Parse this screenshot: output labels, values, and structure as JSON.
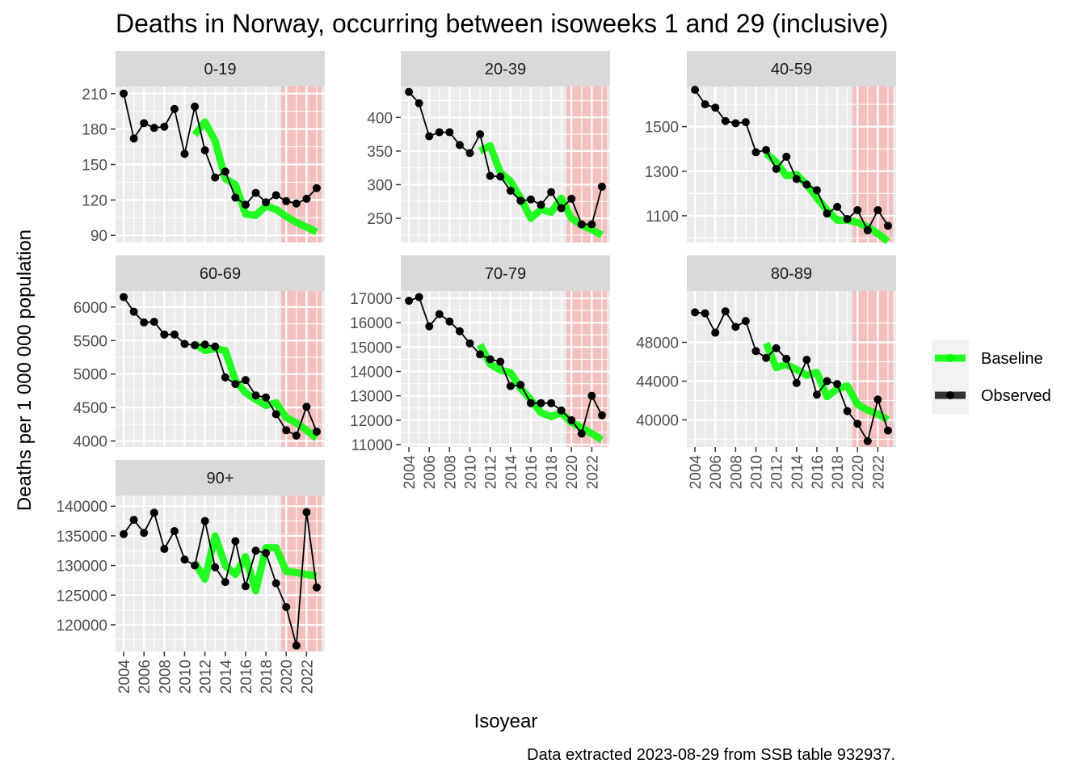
{
  "chart_data": {
    "type": "line",
    "title": "Deaths in Norway, occurring between isoweeks 1 and 29 (inclusive)",
    "xlabel": "Isoyear",
    "ylabel": "Deaths per 1 000 000 population",
    "caption": "Data extracted 2023-08-29 from SSB table 932937.",
    "legend": {
      "position": "right",
      "items": [
        {
          "label": "Baseline",
          "color": "#00ff00"
        },
        {
          "label": "Observed",
          "color": "#000000"
        }
      ]
    },
    "colors": {
      "observed": "#000000",
      "baseline": "#00ff00",
      "shade": "#f4b8b8",
      "panel_bg": "#ebebeb",
      "strip_bg": "#d9d9d9"
    },
    "shaded_range": [
      2019.5,
      2023.5
    ],
    "xlim": [
      2003.2,
      2023.8
    ],
    "x_ticks": [
      2004,
      2006,
      2008,
      2010,
      2012,
      2014,
      2016,
      2018,
      2020,
      2022
    ],
    "x_tick_labels": [
      "2004",
      "2006",
      "2008",
      "2010",
      "2012",
      "2014",
      "2016",
      "2018",
      "2020",
      "2022"
    ],
    "years": [
      2004,
      2005,
      2006,
      2007,
      2008,
      2009,
      2010,
      2011,
      2012,
      2013,
      2014,
      2015,
      2016,
      2017,
      2018,
      2019,
      2020,
      2021,
      2022,
      2023
    ],
    "baseline_years": [
      2011,
      2012,
      2013,
      2014,
      2015,
      2016,
      2017,
      2018,
      2019,
      2020,
      2021,
      2022,
      2023
    ],
    "panels": [
      {
        "name": "0-19",
        "ylim": [
          84,
          216
        ],
        "y_ticks": [
          90,
          120,
          150,
          180,
          210
        ],
        "y_tick_labels": [
          "90",
          "120",
          "150",
          "180",
          "210"
        ],
        "observed": [
          210,
          172,
          185,
          181,
          182,
          197,
          159,
          199,
          162,
          139,
          144,
          122,
          116,
          126,
          118,
          124,
          119,
          117,
          121,
          130
        ],
        "baseline": [
          175,
          186,
          170,
          138,
          133,
          108,
          107,
          115,
          112,
          106,
          101,
          97,
          93
        ]
      },
      {
        "name": "20-39",
        "ylim": [
          214,
          446
        ],
        "y_ticks": [
          250,
          300,
          350,
          400
        ],
        "y_tick_labels": [
          "250",
          "300",
          "350",
          "400"
        ],
        "observed": [
          438,
          421,
          372,
          378,
          378,
          359,
          347,
          375,
          313,
          312,
          291,
          276,
          278,
          270,
          289,
          265,
          279,
          241,
          241,
          297
        ],
        "baseline": [
          350,
          358,
          318,
          305,
          280,
          250,
          263,
          259,
          280,
          250,
          240,
          233,
          225
        ]
      },
      {
        "name": "40-59",
        "ylim": [
          980,
          1680
        ],
        "y_ticks": [
          1100,
          1300,
          1500
        ],
        "y_tick_labels": [
          "1100",
          "1300",
          "1500"
        ],
        "observed": [
          1665,
          1600,
          1585,
          1525,
          1515,
          1520,
          1385,
          1395,
          1310,
          1365,
          1265,
          1240,
          1215,
          1110,
          1140,
          1085,
          1125,
          1035,
          1125,
          1055
        ],
        "baseline": [
          1380,
          1340,
          1280,
          1285,
          1240,
          1180,
          1125,
          1080,
          1080,
          1070,
          1050,
          1020,
          985
        ]
      },
      {
        "name": "60-69",
        "ylim": [
          3910,
          6240
        ],
        "y_ticks": [
          4000,
          4500,
          5000,
          5500,
          6000
        ],
        "y_tick_labels": [
          "4000",
          "4500",
          "5000",
          "5500",
          "6000"
        ],
        "observed": [
          6150,
          5930,
          5770,
          5780,
          5590,
          5590,
          5450,
          5430,
          5440,
          5410,
          4950,
          4850,
          4910,
          4680,
          4650,
          4400,
          4160,
          4080,
          4510,
          4140
        ],
        "baseline": [
          5450,
          5350,
          5380,
          5350,
          4900,
          4720,
          4620,
          4530,
          4570,
          4350,
          4270,
          4160,
          4040
        ]
      },
      {
        "name": "70-79",
        "ylim": [
          10900,
          17300
        ],
        "y_ticks": [
          11000,
          12000,
          13000,
          14000,
          15000,
          16000,
          17000
        ],
        "y_tick_labels": [
          "11000",
          "12000",
          "13000",
          "14000",
          "15000",
          "16000",
          "17000"
        ],
        "observed": [
          16900,
          17050,
          15850,
          16350,
          16050,
          15650,
          15150,
          14700,
          14500,
          14400,
          13400,
          13450,
          12700,
          12700,
          12700,
          12400,
          12000,
          11450,
          13000,
          12200
        ],
        "baseline": [
          15100,
          14300,
          14050,
          13950,
          13300,
          12850,
          12300,
          12150,
          12300,
          11900,
          11700,
          11450,
          11200
        ]
      },
      {
        "name": "80-89",
        "ylim": [
          37200,
          53300
        ],
        "y_ticks": [
          40000,
          44000,
          48000
        ],
        "y_tick_labels": [
          "40000",
          "44000",
          "48000"
        ],
        "observed": [
          51100,
          51000,
          49000,
          51200,
          49600,
          50200,
          47100,
          46400,
          47400,
          46300,
          43800,
          46200,
          42600,
          44000,
          43700,
          40900,
          39600,
          37800,
          42100,
          38900
        ],
        "baseline": [
          47900,
          45400,
          45700,
          45200,
          44600,
          44900,
          42400,
          43200,
          43500,
          41600,
          41000,
          40600,
          40000
        ]
      },
      {
        "name": "90+",
        "ylim": [
          115500,
          141800
        ],
        "y_ticks": [
          120000,
          125000,
          130000,
          135000,
          140000
        ],
        "y_tick_labels": [
          "120000",
          "125000",
          "130000",
          "135000",
          "140000"
        ],
        "observed": [
          135300,
          137700,
          135500,
          138900,
          132800,
          135800,
          131000,
          130000,
          137500,
          129700,
          127200,
          134100,
          126500,
          132500,
          132100,
          127000,
          123000,
          116500,
          139000,
          126300
        ],
        "baseline": [
          130500,
          127700,
          135000,
          130000,
          128500,
          131500,
          125700,
          133000,
          133000,
          129000,
          128800,
          128500,
          128200
        ]
      }
    ]
  }
}
